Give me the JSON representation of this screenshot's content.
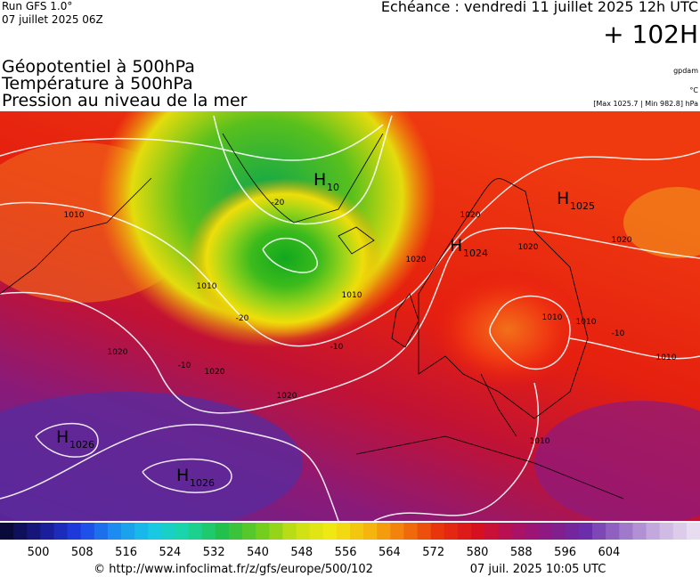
{
  "header": {
    "run": "Run GFS 1.0°",
    "run_date": "07 juillet 2025 06Z",
    "valid": "Echéance : vendredi 11 juillet 2025 12h UTC",
    "lead": "+ 102H"
  },
  "titles": [
    "Géopotentiel à 500hPa",
    "Température à 500hPa",
    "Pression au niveau de la mer"
  ],
  "units": {
    "geopotential": "gpdam",
    "temperature": "°C",
    "pressure": "[Max 1025.7 | Min 982.8] hPa"
  },
  "pressure_centers": [
    {
      "letter": "H",
      "value": "10"
    },
    {
      "letter": "H",
      "value": "1024"
    },
    {
      "letter": "H",
      "value": "1025"
    },
    {
      "letter": "H",
      "value": "1026"
    },
    {
      "letter": "H",
      "value": "1026"
    }
  ],
  "contour_labels": [
    "1010",
    "1010",
    "1010",
    "1010",
    "1010",
    "1010",
    "1010",
    "1020",
    "1020",
    "1020",
    "1020",
    "1020",
    "1020",
    "1020",
    "-20",
    "-20",
    "-10",
    "-10",
    "-10"
  ],
  "colorbar": {
    "labels": [
      "500",
      "508",
      "516",
      "524",
      "532",
      "540",
      "548",
      "556",
      "564",
      "572",
      "580",
      "588",
      "596",
      "604"
    ]
  },
  "footer": {
    "source": "© http://www.infoclimat.fr/z/gfs/europe/500/102",
    "generated": "07 juil. 2025 10:05 UTC"
  }
}
